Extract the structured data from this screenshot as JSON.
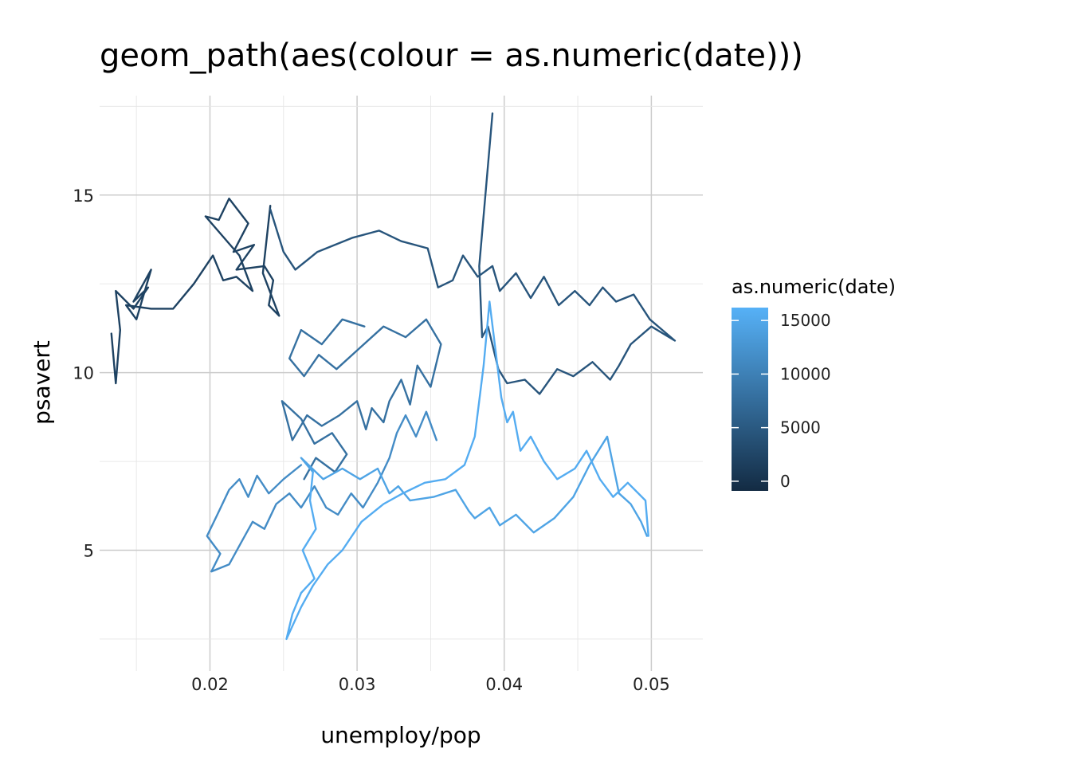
{
  "chart_data": {
    "type": "line",
    "title": "geom_path(aes(colour = as.numeric(date)))",
    "xlabel": "unemploy/pop",
    "ylabel": "psavert",
    "xlim": [
      0.0125,
      0.0535
    ],
    "ylim": [
      1.6,
      17.8
    ],
    "x_ticks": [
      0.02,
      0.03,
      0.04,
      0.05
    ],
    "x_tick_labels": [
      "0.02",
      "0.03",
      "0.04",
      "0.05"
    ],
    "y_ticks": [
      5,
      10,
      15
    ],
    "y_tick_labels": [
      "5",
      "10",
      "15"
    ],
    "grid": true,
    "legend": {
      "title": "as.numeric(date)",
      "position": "right",
      "ticks": [
        0,
        5000,
        10000,
        15000
      ],
      "tick_labels": [
        "0",
        "5000",
        "10000",
        "15000"
      ],
      "range": [
        -900,
        16200
      ],
      "color_low": "#132B43",
      "color_high": "#56B1F7"
    },
    "series": [
      {
        "colour_value": 2000,
        "points": [
          [
            0.0133,
            11.1
          ],
          [
            0.0136,
            9.7
          ],
          [
            0.0139,
            11.2
          ],
          [
            0.0136,
            12.3
          ],
          [
            0.0148,
            11.8
          ],
          [
            0.0158,
            12.4
          ],
          [
            0.0148,
            12.0
          ],
          [
            0.016,
            12.9
          ],
          [
            0.015,
            11.5
          ],
          [
            0.0143,
            11.9
          ],
          [
            0.016,
            11.8
          ],
          [
            0.0175,
            11.8
          ],
          [
            0.0189,
            12.5
          ],
          [
            0.0202,
            13.3
          ],
          [
            0.0209,
            12.6
          ],
          [
            0.0218,
            12.7
          ],
          [
            0.0229,
            12.3
          ],
          [
            0.022,
            13.3
          ],
          [
            0.0197,
            14.4
          ],
          [
            0.0206,
            14.3
          ],
          [
            0.0213,
            14.9
          ],
          [
            0.0226,
            14.2
          ],
          [
            0.0216,
            13.4
          ],
          [
            0.023,
            13.6
          ],
          [
            0.0218,
            12.9
          ],
          [
            0.0237,
            13.0
          ],
          [
            0.0243,
            12.6
          ],
          [
            0.024,
            11.9
          ],
          [
            0.0247,
            11.6
          ],
          [
            0.0236,
            12.8
          ],
          [
            0.0241,
            14.7
          ]
        ]
      },
      {
        "colour_value": 4500,
        "points": [
          [
            0.0241,
            14.6
          ],
          [
            0.025,
            13.4
          ],
          [
            0.0258,
            12.9
          ],
          [
            0.0273,
            13.4
          ],
          [
            0.0297,
            13.8
          ],
          [
            0.0315,
            14.0
          ],
          [
            0.033,
            13.7
          ],
          [
            0.0348,
            13.5
          ],
          [
            0.0355,
            12.4
          ],
          [
            0.0365,
            12.6
          ],
          [
            0.0372,
            13.3
          ],
          [
            0.0382,
            12.7
          ],
          [
            0.0392,
            13.0
          ],
          [
            0.0397,
            12.3
          ],
          [
            0.0408,
            12.8
          ],
          [
            0.0418,
            12.1
          ],
          [
            0.0427,
            12.7
          ],
          [
            0.0437,
            11.9
          ],
          [
            0.0448,
            12.3
          ],
          [
            0.0458,
            11.9
          ],
          [
            0.0467,
            12.4
          ],
          [
            0.0476,
            12.0
          ],
          [
            0.0488,
            12.2
          ],
          [
            0.0499,
            11.5
          ],
          [
            0.0516,
            10.9
          ],
          [
            0.05,
            11.3
          ],
          [
            0.0486,
            10.8
          ],
          [
            0.0478,
            10.2
          ],
          [
            0.0472,
            9.8
          ],
          [
            0.046,
            10.3
          ],
          [
            0.0447,
            9.9
          ],
          [
            0.0436,
            10.1
          ],
          [
            0.0424,
            9.4
          ],
          [
            0.0414,
            9.8
          ],
          [
            0.0402,
            9.7
          ],
          [
            0.0396,
            10.1
          ],
          [
            0.0389,
            11.3
          ],
          [
            0.0385,
            11.0
          ],
          [
            0.0383,
            13.0
          ],
          [
            0.0392,
            17.3
          ]
        ]
      },
      {
        "colour_value": 8000,
        "points": [
          [
            0.0305,
            11.3
          ],
          [
            0.029,
            11.5
          ],
          [
            0.0276,
            10.8
          ],
          [
            0.0262,
            11.2
          ],
          [
            0.0254,
            10.4
          ],
          [
            0.0264,
            9.9
          ],
          [
            0.0274,
            10.5
          ],
          [
            0.0286,
            10.1
          ],
          [
            0.0302,
            10.7
          ],
          [
            0.0318,
            11.3
          ],
          [
            0.0333,
            11.0
          ],
          [
            0.0347,
            11.5
          ],
          [
            0.0357,
            10.8
          ],
          [
            0.035,
            9.6
          ],
          [
            0.0341,
            10.2
          ],
          [
            0.0336,
            9.1
          ],
          [
            0.033,
            9.8
          ],
          [
            0.0322,
            9.2
          ],
          [
            0.0318,
            8.6
          ],
          [
            0.031,
            9.0
          ],
          [
            0.0306,
            8.4
          ],
          [
            0.03,
            9.2
          ],
          [
            0.0288,
            8.8
          ],
          [
            0.0276,
            8.5
          ],
          [
            0.0266,
            8.8
          ],
          [
            0.0256,
            8.1
          ],
          [
            0.0249,
            9.2
          ],
          [
            0.0262,
            8.7
          ],
          [
            0.0271,
            8.0
          ],
          [
            0.0283,
            8.3
          ],
          [
            0.0293,
            7.7
          ],
          [
            0.0285,
            7.2
          ],
          [
            0.0272,
            7.6
          ],
          [
            0.0264,
            7.0
          ]
        ]
      },
      {
        "colour_value": 11500,
        "points": [
          [
            0.0262,
            7.4
          ],
          [
            0.025,
            7.0
          ],
          [
            0.024,
            6.6
          ],
          [
            0.0232,
            7.1
          ],
          [
            0.0226,
            6.5
          ],
          [
            0.022,
            7.0
          ],
          [
            0.0213,
            6.7
          ],
          [
            0.0205,
            6.0
          ],
          [
            0.0198,
            5.4
          ],
          [
            0.0207,
            4.9
          ],
          [
            0.0201,
            4.4
          ],
          [
            0.0213,
            4.6
          ],
          [
            0.0221,
            5.2
          ],
          [
            0.0229,
            5.8
          ],
          [
            0.0237,
            5.6
          ],
          [
            0.0245,
            6.3
          ],
          [
            0.0254,
            6.6
          ],
          [
            0.0262,
            6.2
          ],
          [
            0.0271,
            6.8
          ],
          [
            0.0279,
            6.2
          ],
          [
            0.0287,
            6.0
          ],
          [
            0.0296,
            6.6
          ],
          [
            0.0304,
            6.2
          ],
          [
            0.0314,
            6.9
          ],
          [
            0.0322,
            7.6
          ],
          [
            0.0327,
            8.3
          ],
          [
            0.0333,
            8.8
          ],
          [
            0.034,
            8.2
          ],
          [
            0.0347,
            8.9
          ],
          [
            0.0354,
            8.1
          ]
        ]
      },
      {
        "colour_value": 14500,
        "points": [
          [
            0.027,
            7.2
          ],
          [
            0.0262,
            7.6
          ],
          [
            0.0277,
            7.0
          ],
          [
            0.029,
            7.3
          ],
          [
            0.0302,
            7.0
          ],
          [
            0.0314,
            7.3
          ],
          [
            0.0322,
            6.6
          ],
          [
            0.0328,
            6.8
          ],
          [
            0.0336,
            6.4
          ],
          [
            0.0352,
            6.5
          ],
          [
            0.0367,
            6.7
          ],
          [
            0.0376,
            6.1
          ],
          [
            0.038,
            5.9
          ],
          [
            0.039,
            6.2
          ],
          [
            0.0397,
            5.7
          ],
          [
            0.0408,
            6.0
          ],
          [
            0.042,
            5.5
          ],
          [
            0.0434,
            5.9
          ],
          [
            0.0447,
            6.5
          ],
          [
            0.0458,
            7.4
          ],
          [
            0.047,
            8.2
          ],
          [
            0.0478,
            6.6
          ],
          [
            0.0486,
            6.3
          ],
          [
            0.0493,
            5.8
          ],
          [
            0.0497,
            5.4
          ]
        ]
      },
      {
        "colour_value": 15600,
        "points": [
          [
            0.027,
            7.2
          ],
          [
            0.0268,
            6.4
          ],
          [
            0.0272,
            5.6
          ],
          [
            0.0263,
            5.0
          ],
          [
            0.0271,
            4.2
          ],
          [
            0.0262,
            3.8
          ],
          [
            0.0256,
            3.2
          ],
          [
            0.0252,
            2.5
          ],
          [
            0.0262,
            3.4
          ],
          [
            0.027,
            4.0
          ],
          [
            0.028,
            4.6
          ],
          [
            0.029,
            5.0
          ],
          [
            0.0303,
            5.8
          ],
          [
            0.0318,
            6.3
          ],
          [
            0.0331,
            6.6
          ],
          [
            0.0346,
            6.9
          ],
          [
            0.036,
            7.0
          ],
          [
            0.0373,
            7.4
          ],
          [
            0.038,
            8.2
          ],
          [
            0.0386,
            10.2
          ],
          [
            0.039,
            12.0
          ],
          [
            0.0393,
            11.0
          ],
          [
            0.0398,
            9.3
          ],
          [
            0.0402,
            8.6
          ],
          [
            0.0406,
            8.9
          ],
          [
            0.0411,
            7.8
          ],
          [
            0.0418,
            8.2
          ],
          [
            0.0427,
            7.5
          ],
          [
            0.0436,
            7.0
          ],
          [
            0.0448,
            7.3
          ],
          [
            0.0456,
            7.8
          ],
          [
            0.0465,
            7.0
          ],
          [
            0.0474,
            6.5
          ],
          [
            0.0484,
            6.9
          ],
          [
            0.0496,
            6.4
          ],
          [
            0.0498,
            5.4
          ]
        ]
      }
    ]
  }
}
